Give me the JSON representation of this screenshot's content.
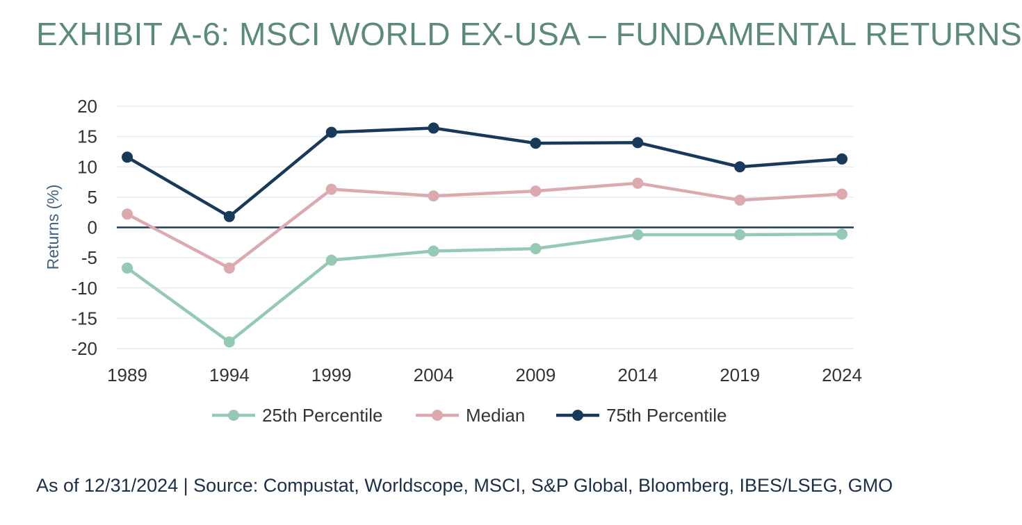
{
  "title": "EXHIBIT A-6: MSCI WORLD EX-USA – FUNDAMENTAL RETURNS",
  "footer": "As of 12/31/2024 | Source: Compustat, Worldscope, MSCI, S&P Global, Bloomberg, IBES/LSEG, GMO",
  "chart_data": {
    "type": "line",
    "title": "",
    "xlabel": "",
    "ylabel": "Returns (%)",
    "x": [
      "1989",
      "1994",
      "1999",
      "2004",
      "2009",
      "2014",
      "2019",
      "2024"
    ],
    "ylim": [
      -20,
      20
    ],
    "yticks": [
      20,
      15,
      10,
      5,
      0,
      -5,
      -10,
      -15,
      -20
    ],
    "grid": true,
    "legend_position": "bottom",
    "series": [
      {
        "name": "25th Percentile",
        "color": "#94c9b4",
        "values": [
          -6.7,
          -18.9,
          -5.4,
          -3.9,
          -3.5,
          -1.2,
          -1.2,
          -1.1
        ]
      },
      {
        "name": "Median",
        "color": "#dba9ae",
        "values": [
          2.2,
          -6.7,
          6.3,
          5.2,
          6.0,
          7.3,
          4.5,
          5.5
        ]
      },
      {
        "name": "75th Percentile",
        "color": "#173a5a",
        "values": [
          11.6,
          1.8,
          15.7,
          16.4,
          13.9,
          14.0,
          10.0,
          11.3
        ]
      }
    ]
  }
}
